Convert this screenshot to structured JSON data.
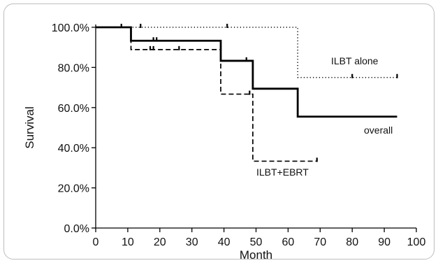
{
  "chart_data": {
    "type": "line",
    "title": "",
    "xlabel": "Month",
    "ylabel": "Survival",
    "xlim": [
      0,
      100
    ],
    "ylim": [
      0,
      100
    ],
    "x_ticks": [
      0,
      10,
      20,
      30,
      40,
      50,
      60,
      70,
      80,
      90,
      100
    ],
    "y_ticks": [
      0,
      20,
      40,
      60,
      80,
      100
    ],
    "x_tick_labels": [
      "0",
      "10",
      "20",
      "30",
      "40",
      "50",
      "60",
      "70",
      "80",
      "90",
      "100"
    ],
    "y_tick_labels": [
      "0.0%",
      "20.0%",
      "40.0%",
      "60.0%",
      "80.0%",
      "100.0%"
    ],
    "grid": false,
    "series": [
      {
        "name": "overall",
        "style": "solid",
        "color": "#000000",
        "steps": [
          [
            0,
            100
          ],
          [
            11,
            93.3
          ],
          [
            39,
            83.3
          ],
          [
            49,
            69.4
          ],
          [
            63,
            55.5
          ],
          [
            94,
            55.5
          ]
        ],
        "censored": [
          [
            8,
            100
          ],
          [
            18,
            93.3
          ],
          [
            19,
            93.3
          ],
          [
            47,
            83.3
          ]
        ]
      },
      {
        "name": "ILBT alone",
        "style": "dotted",
        "color": "#000000",
        "steps": [
          [
            0,
            100
          ],
          [
            63,
            75
          ],
          [
            94,
            75
          ]
        ],
        "censored": [
          [
            14,
            100
          ],
          [
            41,
            100
          ],
          [
            80,
            75
          ],
          [
            94,
            75
          ]
        ]
      },
      {
        "name": "ILBT+EBRT",
        "style": "dashed",
        "color": "#000000",
        "steps": [
          [
            0,
            100
          ],
          [
            11,
            88.9
          ],
          [
            39,
            66.7
          ],
          [
            49,
            33.3
          ],
          [
            69,
            33.3
          ]
        ],
        "censored": [
          [
            17,
            88.9
          ],
          [
            18,
            88.9
          ],
          [
            26,
            88.9
          ],
          [
            48,
            66.7
          ],
          [
            69,
            33.3
          ]
        ]
      }
    ],
    "annotations": [
      "ILBT alone",
      "overall",
      "ILBT+EBRT"
    ]
  }
}
